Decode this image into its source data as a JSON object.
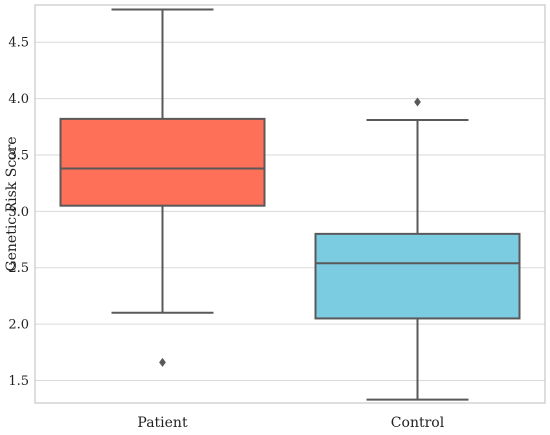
{
  "chart_data": {
    "type": "boxplot",
    "title": "",
    "xlabel": "",
    "ylabel": "Genetic Risk Score",
    "ylim": [
      1.3,
      4.83
    ],
    "yticks": [
      "1.5",
      "2.0",
      "2.5",
      "3.0",
      "3.5",
      "4.0",
      "4.5"
    ],
    "grid": "horizontal",
    "categories": [
      "Patient",
      "Control"
    ],
    "boxes": [
      {
        "category": "Patient",
        "whisker_low": 2.1,
        "q1": 3.05,
        "median": 3.38,
        "q3": 3.82,
        "whisker_high": 4.79,
        "outliers": [
          1.66
        ],
        "color": "#ff7059"
      },
      {
        "category": "Control",
        "whisker_low": 1.33,
        "q1": 2.05,
        "median": 2.54,
        "q3": 2.8,
        "whisker_high": 3.81,
        "outliers": [
          3.97
        ],
        "color": "#7bcbe1"
      }
    ],
    "edge_color": "#595959",
    "grid_color": "#d9d9d9",
    "frame_color": "#c8c8c8"
  }
}
